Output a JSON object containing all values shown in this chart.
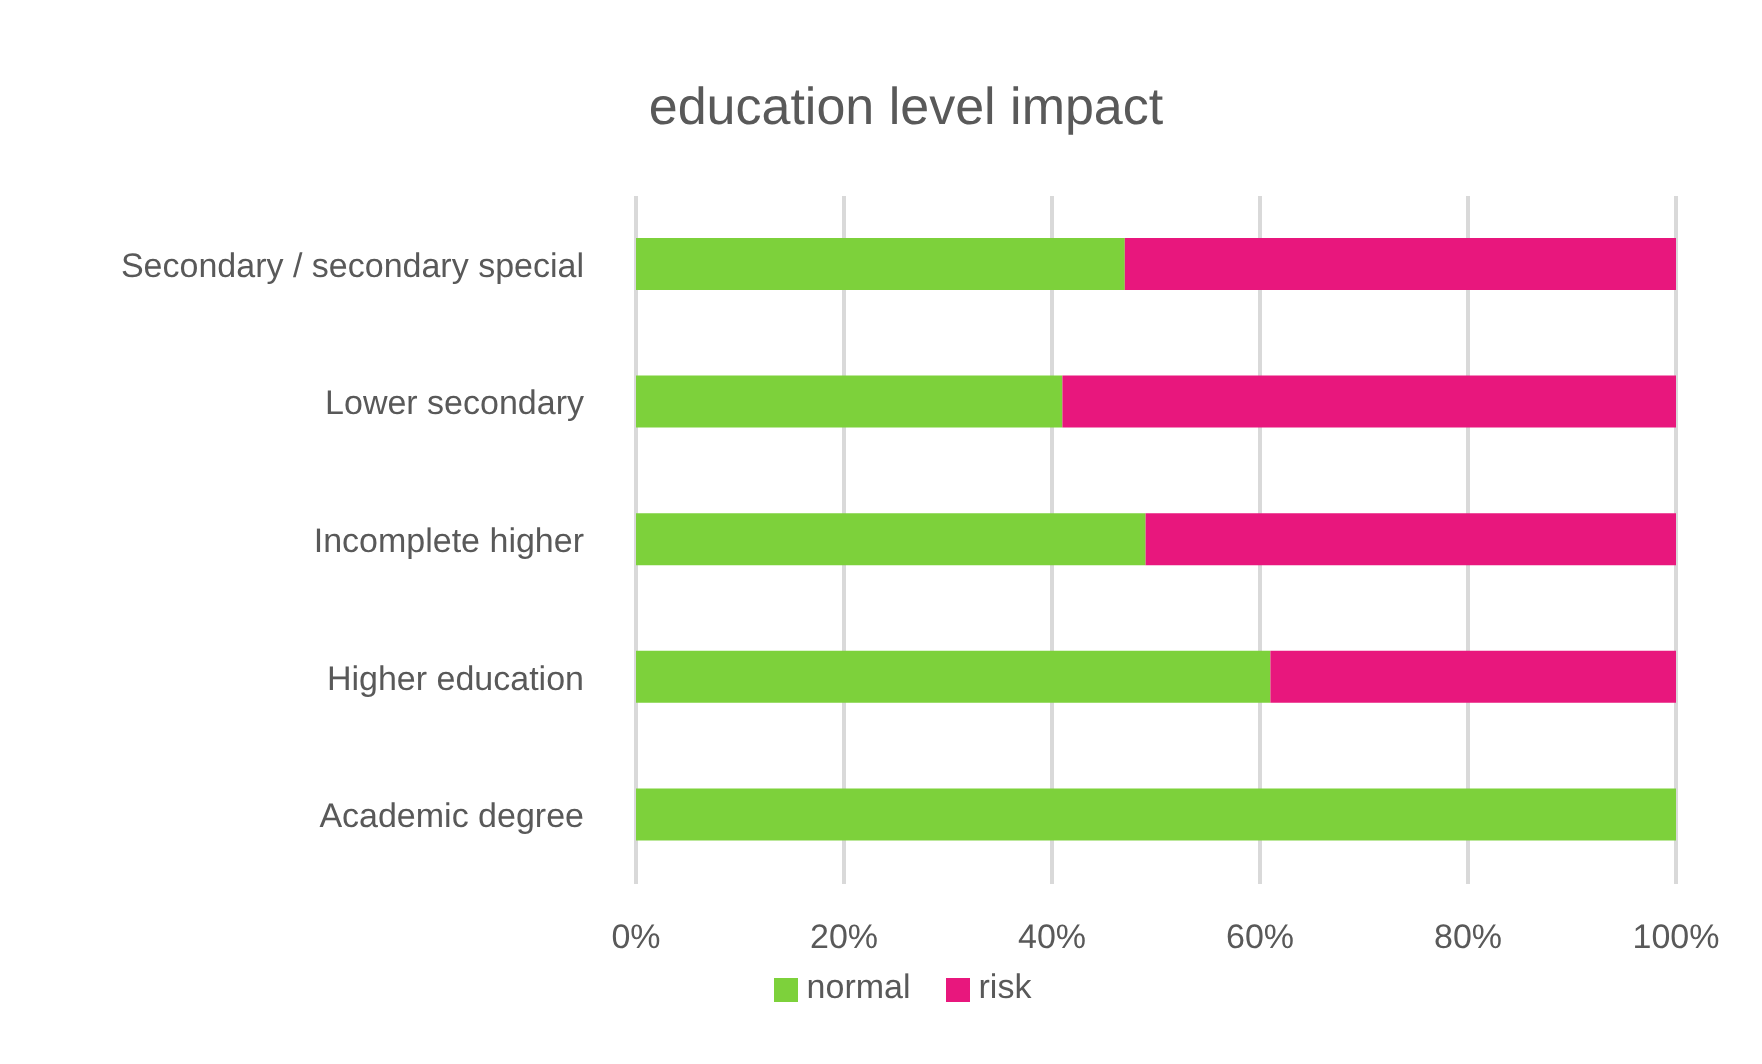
{
  "chart_data": {
    "type": "bar",
    "orientation": "horizontal",
    "stacked": true,
    "title": "education level  impact",
    "categories": [
      "Secondary / secondary special",
      "Lower secondary",
      "Incomplete higher",
      "Higher education",
      "Academic degree"
    ],
    "series": [
      {
        "name": "normal",
        "color": "#7dd13b",
        "values": [
          47,
          41,
          49,
          61,
          100
        ]
      },
      {
        "name": "risk",
        "color": "#e8177d",
        "values": [
          53,
          59,
          51,
          39,
          0
        ]
      }
    ],
    "xlim": [
      0,
      100
    ],
    "xticks": [
      {
        "value": 0,
        "label": "0%"
      },
      {
        "value": 20,
        "label": "20%"
      },
      {
        "value": 40,
        "label": "40%"
      },
      {
        "value": 60,
        "label": "60%"
      },
      {
        "value": 80,
        "label": "80%"
      },
      {
        "value": 100,
        "label": "100%"
      }
    ],
    "grid": "x",
    "legend": "bottom"
  }
}
